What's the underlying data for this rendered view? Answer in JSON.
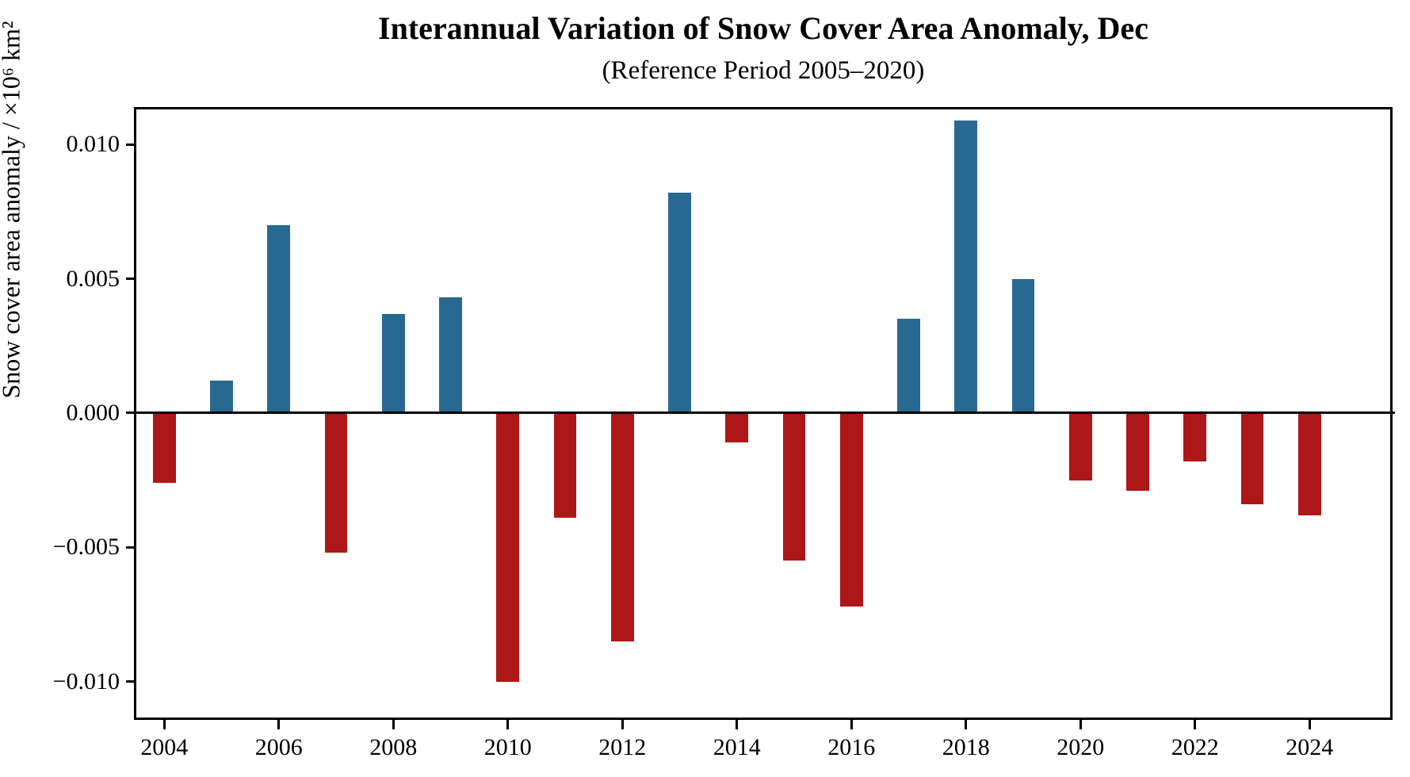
{
  "figure": {
    "title": "Interannual Variation of Snow Cover Area Anomaly, Dec",
    "subtitle": "(Reference Period 2005–2020)"
  },
  "chart_data": {
    "type": "bar",
    "title": "Interannual Variation of Snow Cover Area Anomaly, Dec",
    "subtitle": "(Reference Period 2005–2020)",
    "xlabel": "",
    "ylabel": "Snow cover area anomaly / ×10⁶ km²",
    "categories": [
      2004,
      2005,
      2006,
      2007,
      2008,
      2009,
      2010,
      2011,
      2012,
      2013,
      2014,
      2015,
      2016,
      2017,
      2018,
      2019,
      2020,
      2021,
      2022,
      2023,
      2024
    ],
    "values": [
      -0.0026,
      0.0012,
      0.007,
      -0.0052,
      0.0037,
      0.0043,
      -0.01,
      -0.0039,
      -0.0085,
      0.0082,
      -0.0011,
      -0.0055,
      -0.0072,
      0.0035,
      0.0109,
      0.005,
      -0.0025,
      -0.0029,
      -0.0018,
      -0.0034,
      -0.0038
    ],
    "color_rule": "positive bars blue, negative bars red",
    "positive_color": "#276990",
    "negative_color": "#ae1717",
    "axis_color": "#000000",
    "background_color": "#ffffff",
    "xlim": [
      2003.47,
      2025.45
    ],
    "ylim": [
      -0.01142,
      0.01139
    ],
    "xticks": [
      2004,
      2006,
      2008,
      2010,
      2012,
      2014,
      2016,
      2018,
      2020,
      2022,
      2024
    ],
    "xtick_labels": [
      "2004",
      "2006",
      "2008",
      "2010",
      "2012",
      "2014",
      "2016",
      "2018",
      "2020",
      "2022",
      "2024"
    ],
    "yticks": [
      0.01,
      0.005,
      0.0,
      -0.005,
      -0.01
    ],
    "ytick_labels": [
      "0.010",
      "0.005",
      "0.000",
      "−0.005",
      "−0.010"
    ],
    "bar_width_years": 0.4,
    "grid": false,
    "legend": null,
    "zero_line": true
  }
}
